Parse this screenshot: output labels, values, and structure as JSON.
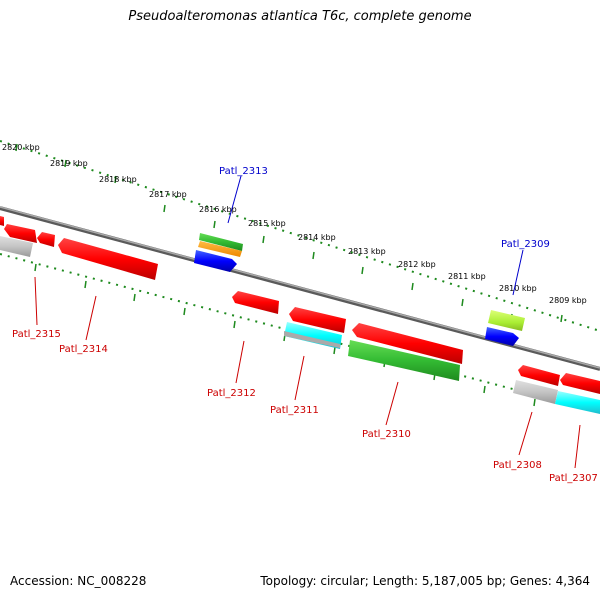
{
  "title": "Pseudoalteromonas atlantica T6c, complete genome",
  "footer": {
    "accession": "Accession: NC_008228",
    "summary": "Topology: circular; Length: 5,187,005 bp; Genes: 4,364"
  },
  "colors": {
    "backbone": "#808080",
    "tick": "#1e8a1e",
    "label_forward": "#0000cc",
    "label_reverse": "#cc0000"
  },
  "kbp_labels": [
    "2820 kbp",
    "2819 kbp",
    "2818 kbp",
    "2817 kbp",
    "2816 kbp",
    "2815 kbp",
    "2814 kbp",
    "2813 kbp",
    "2812 kbp",
    "2811 kbp",
    "2810 kbp",
    "2809 kbp"
  ],
  "gene_labels": [
    {
      "id": "patl-2313",
      "text": "Patl_2313",
      "strand": "forward"
    },
    {
      "id": "patl-2309",
      "text": "Patl_2309",
      "strand": "forward"
    },
    {
      "id": "patl-2315",
      "text": "Patl_2315",
      "strand": "reverse"
    },
    {
      "id": "patl-2314",
      "text": "Patl_2314",
      "strand": "reverse"
    },
    {
      "id": "patl-2312",
      "text": "Patl_2312",
      "strand": "reverse"
    },
    {
      "id": "patl-2311",
      "text": "Patl_2311",
      "strand": "reverse"
    },
    {
      "id": "patl-2310",
      "text": "Patl_2310",
      "strand": "reverse"
    },
    {
      "id": "patl-2308",
      "text": "Patl_2308",
      "strand": "reverse"
    },
    {
      "id": "patl-2307",
      "text": "Patl_2307",
      "strand": "reverse"
    }
  ]
}
